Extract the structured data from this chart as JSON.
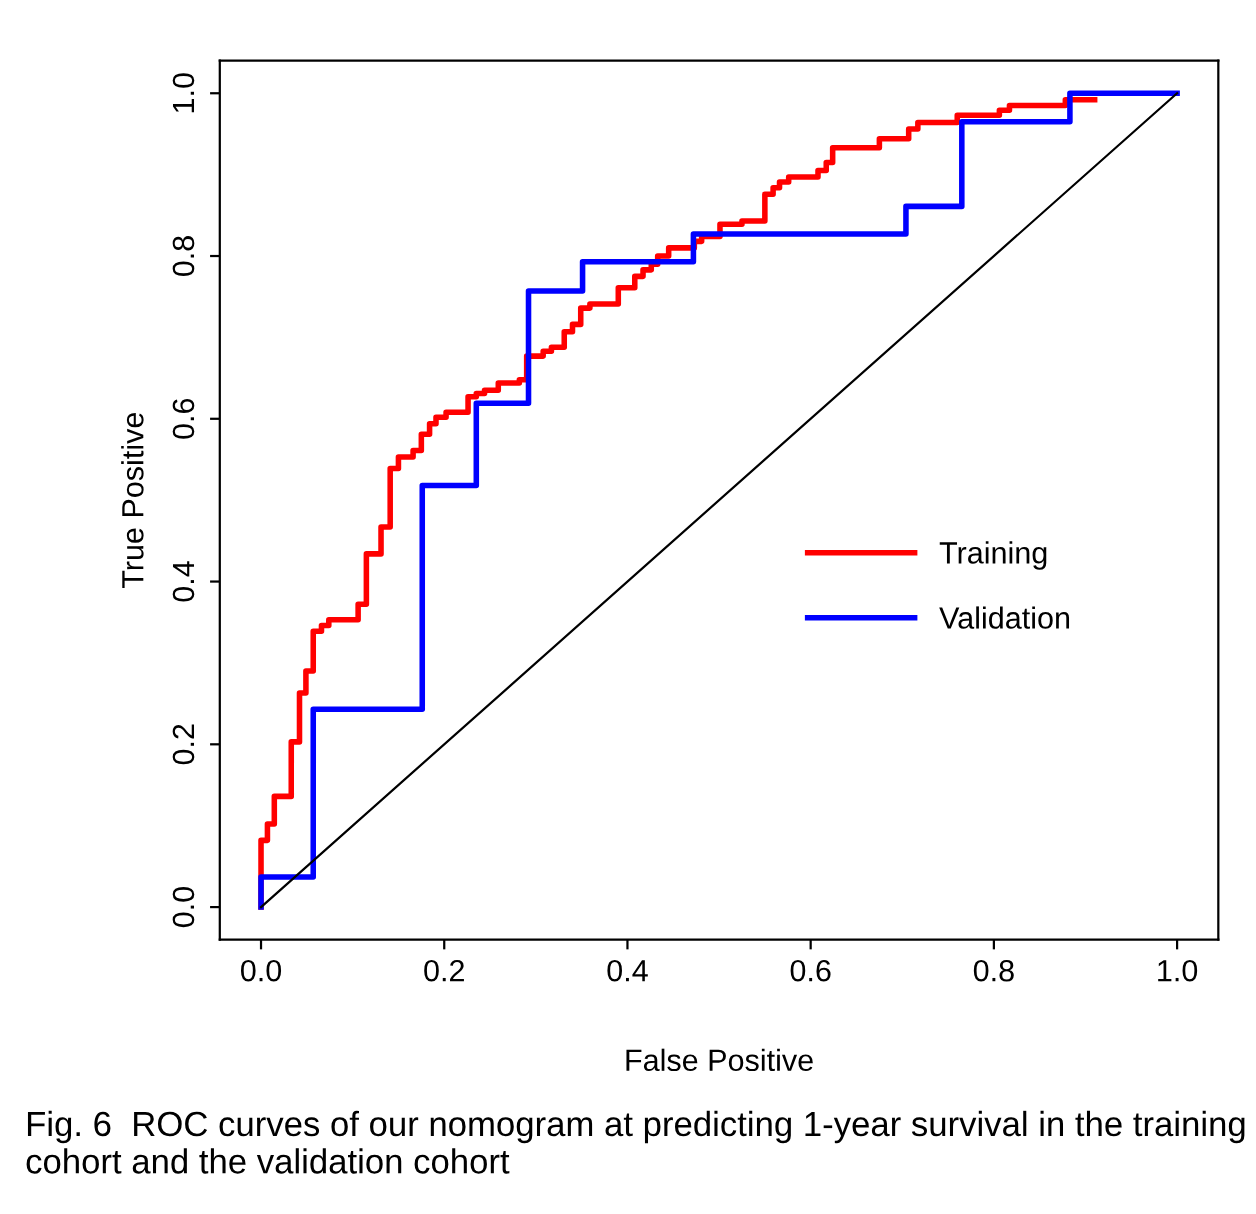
{
  "chart_data": {
    "type": "step",
    "xlabel": "False Positive",
    "ylabel": "True Positive",
    "xlim": [
      -0.045,
      1.045
    ],
    "ylim": [
      -0.04,
      1.04
    ],
    "xticks": [
      {
        "value": 0,
        "label": "0.0"
      },
      0.2,
      0.4,
      0.6,
      0.8,
      {
        "value": 1,
        "label": "1.0"
      }
    ],
    "yticks": [
      {
        "value": 0,
        "label": "0.0"
      },
      0.2,
      0.4,
      0.6,
      0.8,
      {
        "value": 1,
        "label": "1.0"
      }
    ],
    "series": [
      {
        "name": "Training",
        "color": "#ff0000",
        "x": [
          0,
          0,
          0.007,
          0.0145,
          0.033,
          0.042,
          0.049,
          0.057,
          0.066,
          0.074,
          0.106,
          0.115,
          0.131,
          0.141,
          0.15,
          0.166,
          0.175,
          0.184,
          0.191,
          0.202,
          0.226,
          0.235,
          0.244,
          0.259,
          0.282,
          0.29,
          0.308,
          0.317,
          0.331,
          0.34,
          0.349,
          0.359,
          0.39,
          0.408,
          0.417,
          0.426,
          0.433,
          0.445,
          0.473,
          0.481,
          0.501,
          0.525,
          0.55,
          0.559,
          0.566,
          0.576,
          0.608,
          0.617,
          0.624,
          0.675,
          0.707,
          0.717,
          0.76,
          0.806,
          0.817,
          0.878,
          0.91
        ],
        "values": [
          0,
          0.082,
          0.102,
          0.136,
          0.203,
          0.263,
          0.29,
          0.339,
          0.346,
          0.353,
          0.372,
          0.434,
          0.467,
          0.539,
          0.553,
          0.561,
          0.581,
          0.594,
          0.602,
          0.608,
          0.627,
          0.631,
          0.635,
          0.644,
          0.648,
          0.677,
          0.683,
          0.688,
          0.707,
          0.716,
          0.736,
          0.741,
          0.761,
          0.775,
          0.783,
          0.79,
          0.8,
          0.81,
          0.818,
          0.824,
          0.839,
          0.843,
          0.876,
          0.884,
          0.891,
          0.897,
          0.905,
          0.915,
          0.933,
          0.944,
          0.956,
          0.964,
          0.973,
          0.979,
          0.985,
          0.992,
          0.992
        ]
      },
      {
        "name": "Validation",
        "color": "#0000ff",
        "x": [
          0,
          0,
          0.057,
          0.176,
          0.235,
          0.292,
          0.351,
          0.472,
          0.704,
          0.765,
          0.883,
          1.0
        ],
        "values": [
          0,
          0.037,
          0.243,
          0.518,
          0.619,
          0.757,
          0.793,
          0.827,
          0.861,
          0.965,
          1.0,
          1.0
        ]
      },
      {
        "type": "line",
        "color": "#000000",
        "x": [
          0,
          1
        ],
        "values": [
          0,
          1
        ]
      }
    ],
    "legend": "right",
    "annotations": [
      "Fig. 6  ROC curves of our nomogram at predicting 1-year survival in the training cohort and the validation cohort"
    ]
  }
}
